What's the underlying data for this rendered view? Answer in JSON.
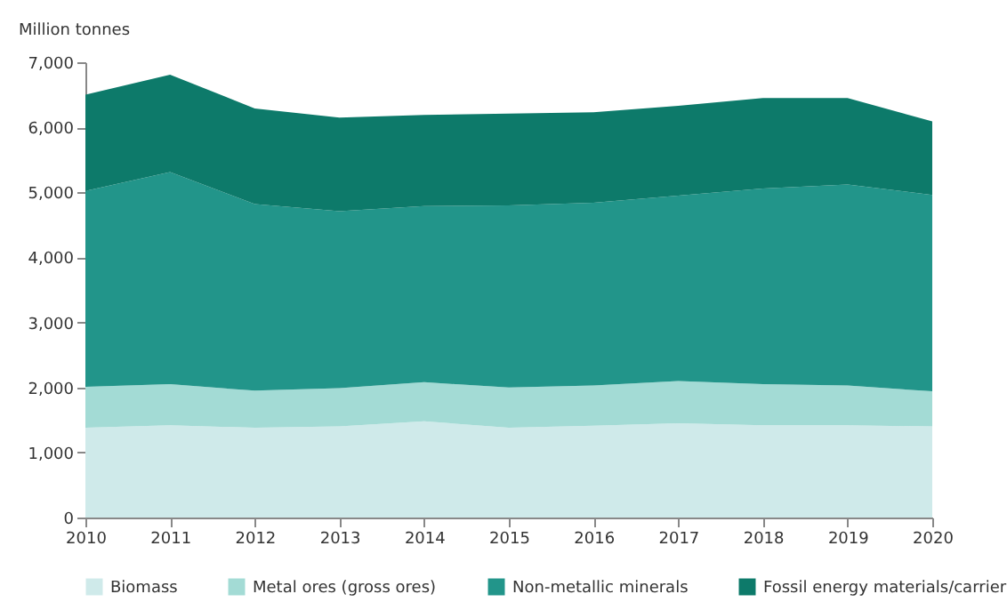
{
  "chart_data": {
    "type": "area",
    "stacked": true,
    "ylabel": "Million tonnes",
    "x": [
      2010,
      2011,
      2012,
      2013,
      2014,
      2015,
      2016,
      2017,
      2018,
      2019,
      2020
    ],
    "series": [
      {
        "name": "Biomass",
        "color": "#cfeaea",
        "values": [
          1380,
          1420,
          1380,
          1400,
          1480,
          1380,
          1410,
          1450,
          1420,
          1420,
          1400
        ]
      },
      {
        "name": "Metal ores (gross ores)",
        "color": "#a3dbd5",
        "values": [
          630,
          630,
          570,
          590,
          600,
          620,
          620,
          650,
          630,
          610,
          540
        ]
      },
      {
        "name": "Non-metallic minerals",
        "color": "#22958a",
        "values": [
          3010,
          3260,
          2870,
          2720,
          2710,
          2800,
          2810,
          2850,
          3010,
          3090,
          3020
        ]
      },
      {
        "name": "Fossil energy materials/carrier",
        "color": "#0d7a6a",
        "values": [
          1480,
          1500,
          1470,
          1440,
          1400,
          1410,
          1390,
          1380,
          1390,
          1330,
          1130
        ]
      }
    ],
    "xlim": [
      2010,
      2020
    ],
    "xticks": [
      2010,
      2011,
      2012,
      2013,
      2014,
      2015,
      2016,
      2017,
      2018,
      2019,
      2020
    ],
    "ylim": [
      0,
      7000
    ],
    "yticks": [
      0,
      {
        "value": 1000,
        "label": "1,000"
      },
      {
        "value": 2000,
        "label": "2,000"
      },
      {
        "value": 3000,
        "label": "3,000"
      },
      {
        "value": 4000,
        "label": "4,000"
      },
      {
        "value": 5000,
        "label": "5,000"
      },
      {
        "value": 6000,
        "label": "6,000"
      },
      {
        "value": 7000,
        "label": "7,000"
      }
    ],
    "grid": false,
    "legend": "bottom"
  }
}
